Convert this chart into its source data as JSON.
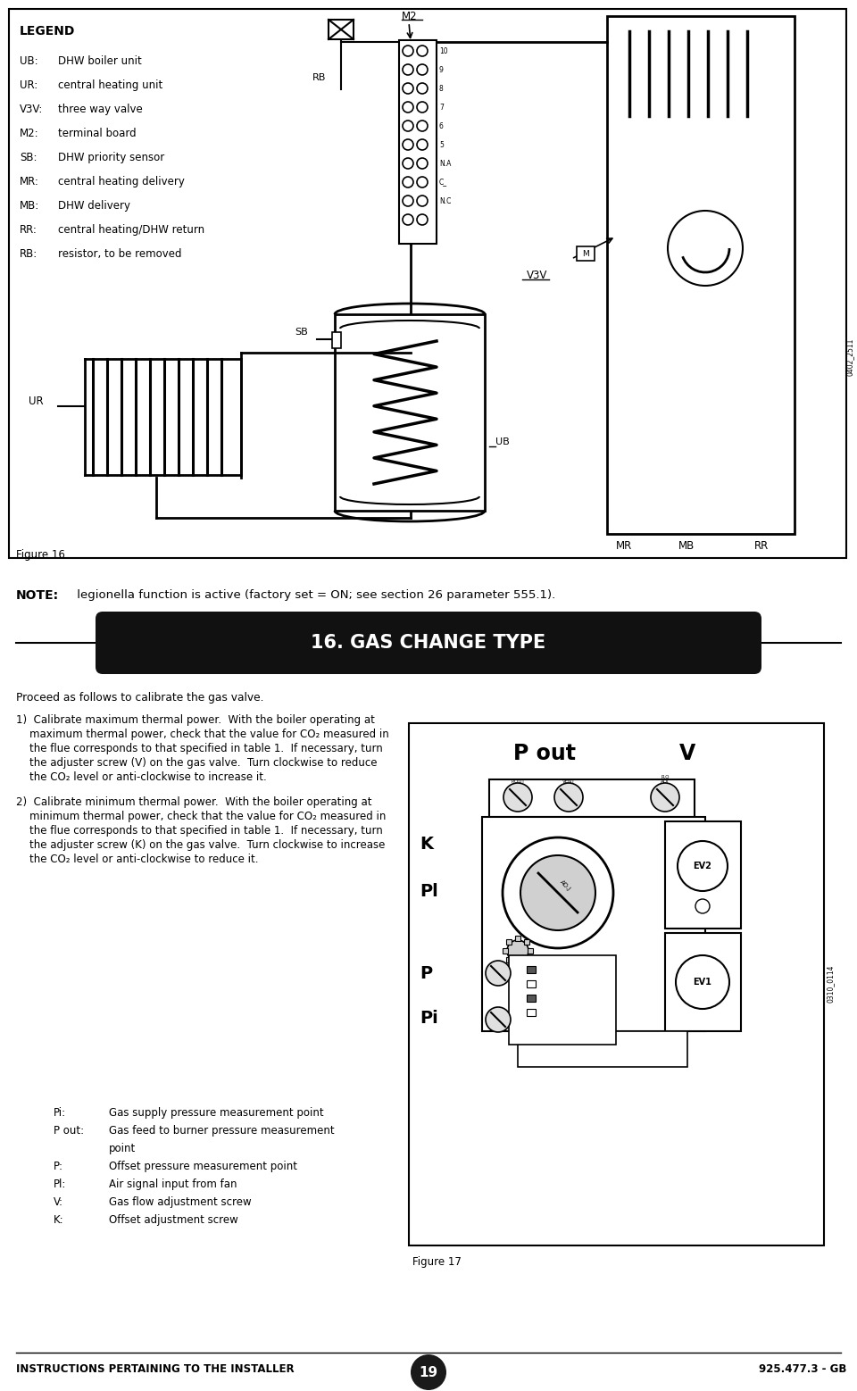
{
  "bg_color": "#ffffff",
  "page_width": 9.6,
  "page_height": 15.58,
  "legend_title": "LEGEND",
  "legend_items": [
    [
      "UB:",
      "DHW boiler unit"
    ],
    [
      "UR:",
      "central heating unit"
    ],
    [
      "V3V:",
      "three way valve"
    ],
    [
      "M2:",
      "terminal board"
    ],
    [
      "SB:",
      "DHW priority sensor"
    ],
    [
      "MR:",
      "central heating delivery"
    ],
    [
      "MB:",
      "DHW delivery"
    ],
    [
      "RR:",
      "central heating/DHW return"
    ],
    [
      "RB:",
      "resistor, to be removed"
    ]
  ],
  "figure16_label": "Figure 16",
  "figure_id_label": "0402_2511",
  "note_bold": "NOTE:",
  "note_text": " legionella function is active (factory set = ON; see section 26 parameter 555.1).",
  "section_title": "16. GAS CHANGE TYPE",
  "intro_text": "Proceed as follows to calibrate the gas valve.",
  "step1_lines": [
    "1)  Calibrate maximum thermal power.  With the boiler operating at",
    "    maximum thermal power, check that the value for CO₂ measured in",
    "    the flue corresponds to that specified in table 1.  If necessary, turn",
    "    the adjuster screw (V) on the gas valve.  Turn clockwise to reduce",
    "    the CO₂ level or anti-clockwise to increase it."
  ],
  "step2_lines": [
    "2)  Calibrate minimum thermal power.  With the boiler operating at",
    "    minimum thermal power, check that the value for CO₂ measured in",
    "    the flue corresponds to that specified in table 1.  If necessary, turn",
    "    the adjuster screw (K) on the gas valve.  Turn clockwise to increase",
    "    the CO₂ level or anti-clockwise to reduce it."
  ],
  "legend2_data": [
    [
      "Pi:",
      "Gas supply pressure measurement point"
    ],
    [
      "P out:",
      "Gas feed to burner pressure measurement"
    ],
    [
      "",
      "point"
    ],
    [
      "P:",
      "Offset pressure measurement point"
    ],
    [
      "Pl:",
      "Air signal input from fan"
    ],
    [
      "V:",
      "Gas flow adjustment screw"
    ],
    [
      "K:",
      "Offset adjustment screw"
    ]
  ],
  "figure17_label": "Figure 17",
  "figure_id2_label": "0310_0114",
  "footer_left": "INSTRUCTIONS PERTAINING TO THE INSTALLER",
  "footer_page": "19",
  "footer_right": "925.477.3 - GB",
  "text_color": "#000000",
  "title_bg": "#111111",
  "title_fg": "#ffffff"
}
